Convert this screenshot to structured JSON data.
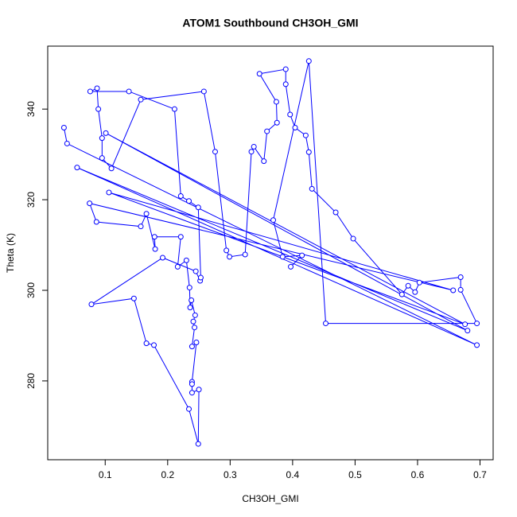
{
  "chart_data": {
    "type": "line",
    "title": "ATOM1 Southbound CH3OH_GMI",
    "x_label": "CH3OH_GMI",
    "y_label": "Theta (K)",
    "color": "#0000ff",
    "marker": "circle",
    "xlim": [
      0.008,
      0.721
    ],
    "ylim": [
      262.6,
      353.9
    ],
    "xticks": [
      0.1,
      0.2,
      0.3,
      0.4,
      0.5,
      0.6,
      0.7
    ],
    "yticks": [
      280,
      300,
      320,
      340
    ],
    "x": [
      0.034,
      0.039,
      0.695,
      0.055,
      0.68,
      0.101,
      0.676,
      0.106,
      0.657,
      0.075,
      0.086,
      0.157,
      0.166,
      0.18,
      0.179,
      0.221,
      0.216,
      0.23,
      0.235,
      0.236,
      0.238,
      0.244,
      0.241,
      0.243,
      0.239,
      0.246,
      0.239,
      0.239,
      0.239,
      0.25,
      0.249,
      0.234,
      0.178,
      0.166,
      0.146,
      0.078,
      0.192,
      0.245,
      0.252,
      0.253,
      0.249,
      0.234,
      0.221,
      0.211,
      0.138,
      0.076,
      0.087,
      0.089,
      0.095,
      0.095,
      0.11,
      0.157,
      0.258,
      0.276,
      0.294,
      0.299,
      0.324,
      0.334,
      0.338,
      0.354,
      0.359,
      0.375,
      0.374,
      0.347,
      0.389,
      0.389,
      0.396,
      0.404,
      0.421,
      0.426,
      0.431,
      0.469,
      0.497,
      0.575,
      0.585,
      0.596,
      0.603,
      0.669,
      0.669,
      0.695,
      0.453,
      0.426,
      0.369,
      0.384,
      0.415,
      0.397
    ],
    "values": [
      335.9,
      332.4,
      287.9,
      327.1,
      291.1,
      334.7,
      292.5,
      321.6,
      300.0,
      319.2,
      315.1,
      314.1,
      316.9,
      309.1,
      311.8,
      311.8,
      305.2,
      306.6,
      300.6,
      296.2,
      297.8,
      294.5,
      293.1,
      291.8,
      287.6,
      288.5,
      279.8,
      279.3,
      277.4,
      278.1,
      266.1,
      273.8,
      287.9,
      288.3,
      298.2,
      296.9,
      307.2,
      304.2,
      302.1,
      302.8,
      318.3,
      319.7,
      320.8,
      340.0,
      343.9,
      343.9,
      344.6,
      340.0,
      333.6,
      329.2,
      326.9,
      342.1,
      343.9,
      330.6,
      308.8,
      307.4,
      307.9,
      330.6,
      331.7,
      328.5,
      335.1,
      337.0,
      341.6,
      347.8,
      348.8,
      345.5,
      338.8,
      335.9,
      334.2,
      330.5,
      322.4,
      317.2,
      311.4,
      299.1,
      301.0,
      299.6,
      301.7,
      302.9,
      300.1,
      292.7,
      292.7,
      350.6,
      315.5,
      307.4,
      307.7,
      305.2
    ]
  }
}
